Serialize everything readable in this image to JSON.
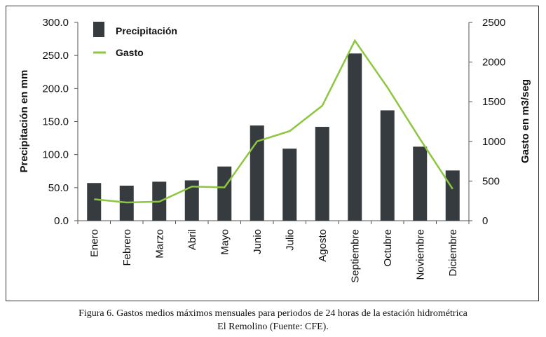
{
  "chart_data": {
    "type": "bar",
    "categories": [
      "Enero",
      "Febrero",
      "Marzo",
      "Abril",
      "Mayo",
      "Junio",
      "Julio",
      "Agosto",
      "Septiembre",
      "Octubre",
      "Noviembre",
      "Diciembre"
    ],
    "series": [
      {
        "name": "Precipitación",
        "type": "bar",
        "axis": "left",
        "color": "#363b3f",
        "values": [
          57,
          53,
          59,
          61,
          82,
          144,
          109,
          142,
          253,
          167,
          112,
          76
        ]
      },
      {
        "name": "Gasto",
        "type": "line",
        "axis": "right",
        "color": "#8dc63f",
        "values": [
          270,
          230,
          240,
          430,
          420,
          1000,
          1130,
          1450,
          2270,
          1680,
          1030,
          400
        ]
      }
    ],
    "ylabel": "Precipitación en mm",
    "y2label": "Gasto en m3/seg",
    "ylim": [
      0,
      300
    ],
    "y2lim": [
      0,
      2500
    ],
    "yticks": [
      "0.0",
      "50.0",
      "100.0",
      "150.0",
      "200.0",
      "250.0",
      "300.0"
    ],
    "y2ticks": [
      "0",
      "500",
      "1000",
      "1500",
      "2000",
      "2500"
    ],
    "legend_position": "top-left"
  },
  "caption": {
    "line1": "Figura 6. Gastos medios máximos mensuales para periodos de 24 horas de la estación hidrométrica",
    "line2": "El Remolino (Fuente: CFE)."
  }
}
